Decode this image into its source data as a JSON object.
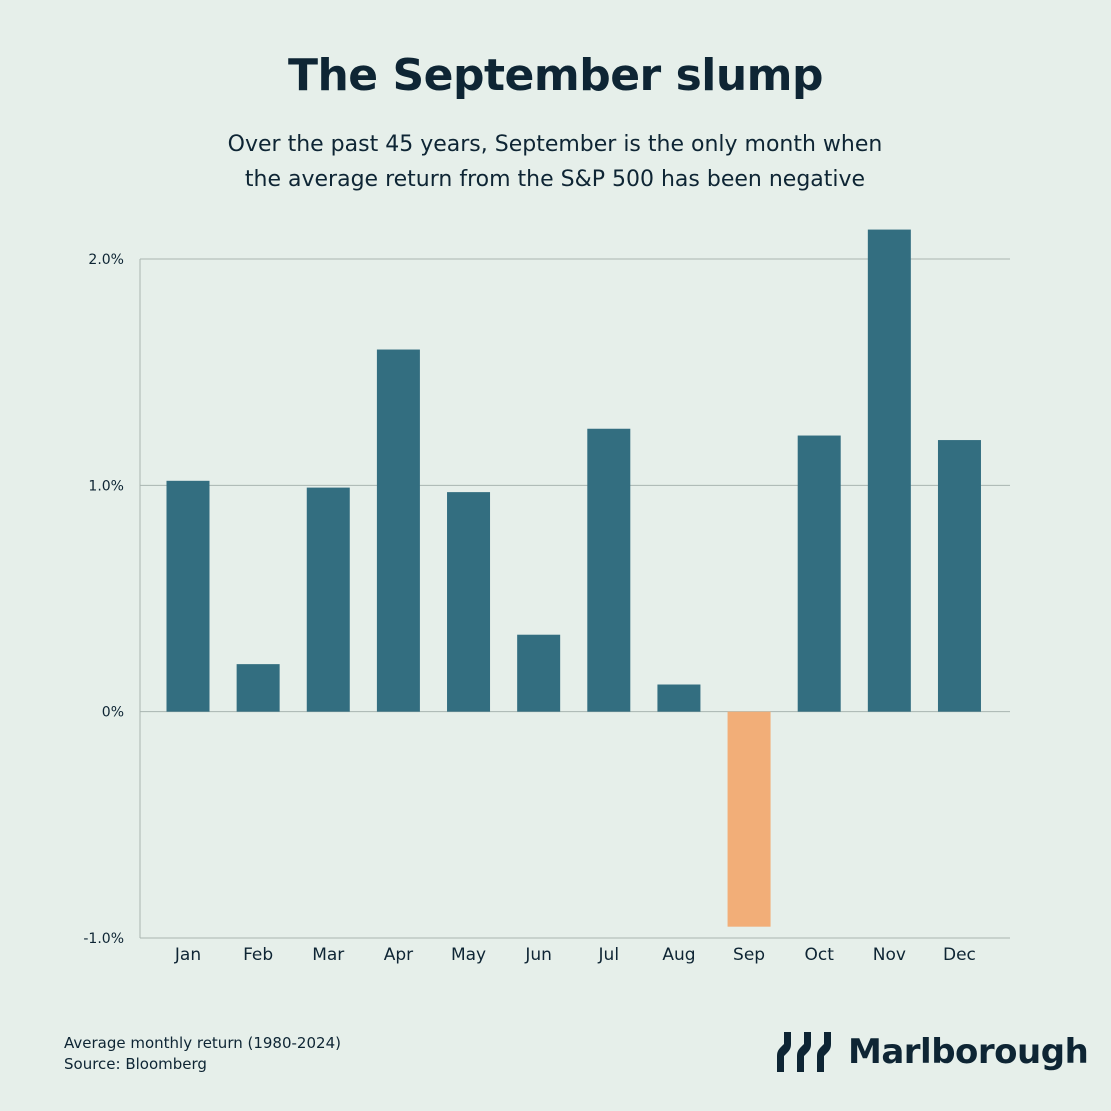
{
  "title": "The September slump",
  "subtitle_line1": "Over the past 45 years, September is the only month when",
  "subtitle_line2": "the average return from the S&P 500 has been negative",
  "footnote_line1": "Average monthly return (1980-2024)",
  "footnote_line2": "Source: Bloomberg",
  "brand": "Marlborough",
  "colors": {
    "background": "#e6efea",
    "positive_bar": "#336e80",
    "negative_bar": "#f2ae78",
    "text": "#0e2534",
    "grid": "#a9b5b0"
  },
  "chart_data": {
    "type": "bar",
    "categories": [
      "Jan",
      "Feb",
      "Mar",
      "Apr",
      "May",
      "Jun",
      "Jul",
      "Aug",
      "Sep",
      "Oct",
      "Nov",
      "Dec"
    ],
    "values": [
      1.02,
      0.21,
      0.99,
      1.6,
      0.97,
      0.34,
      1.25,
      0.12,
      -0.95,
      1.22,
      2.13,
      1.2
    ],
    "ylim": [
      -1.0,
      2.0
    ],
    "yticks": [
      -1.0,
      0,
      1.0,
      2.0
    ],
    "ytick_labels": [
      "-1.0%",
      "0%",
      "1.0%",
      "2.0%"
    ],
    "grid": true,
    "xlabel": "",
    "ylabel": ""
  }
}
